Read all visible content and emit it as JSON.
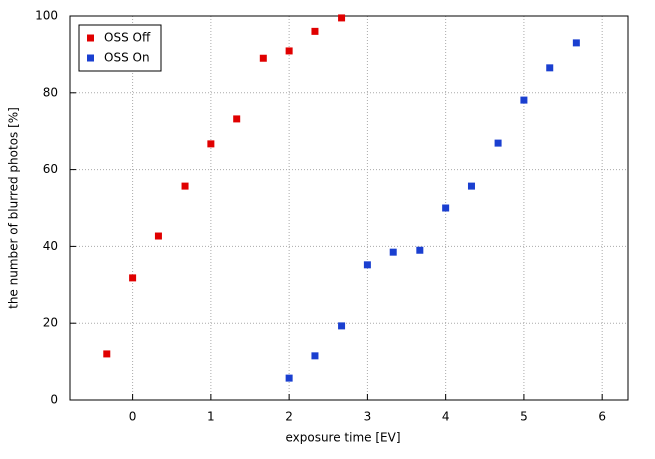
{
  "chart_data": {
    "type": "scatter",
    "xlabel": "exposure time [EV]",
    "ylabel": "the number of blurred photos [%]",
    "xlim": [
      -0.8,
      6.33
    ],
    "ylim": [
      0,
      100
    ],
    "xticks": [
      0,
      1,
      2,
      3,
      4,
      5,
      6
    ],
    "yticks": [
      0,
      20,
      40,
      60,
      80,
      100
    ],
    "grid": true,
    "legend": "upper left",
    "series": [
      {
        "name": "OSS Off",
        "color": "#e00000",
        "x": [
          -0.33,
          0,
          0.33,
          0.67,
          1,
          1.33,
          1.67,
          2,
          2.33,
          2.67
        ],
        "values": [
          12,
          31.8,
          42.7,
          55.7,
          66.7,
          73.2,
          89,
          90.9,
          96,
          99.5
        ]
      },
      {
        "name": "OSS On",
        "color": "#1a3fd0",
        "x": [
          2,
          2.33,
          2.67,
          3,
          3.33,
          3.67,
          4,
          4.33,
          4.67,
          5,
          5.33,
          5.67
        ],
        "values": [
          5.7,
          11.5,
          19.3,
          35.2,
          38.5,
          39,
          50,
          55.7,
          66.9,
          78.1,
          86.5,
          93
        ]
      }
    ]
  }
}
